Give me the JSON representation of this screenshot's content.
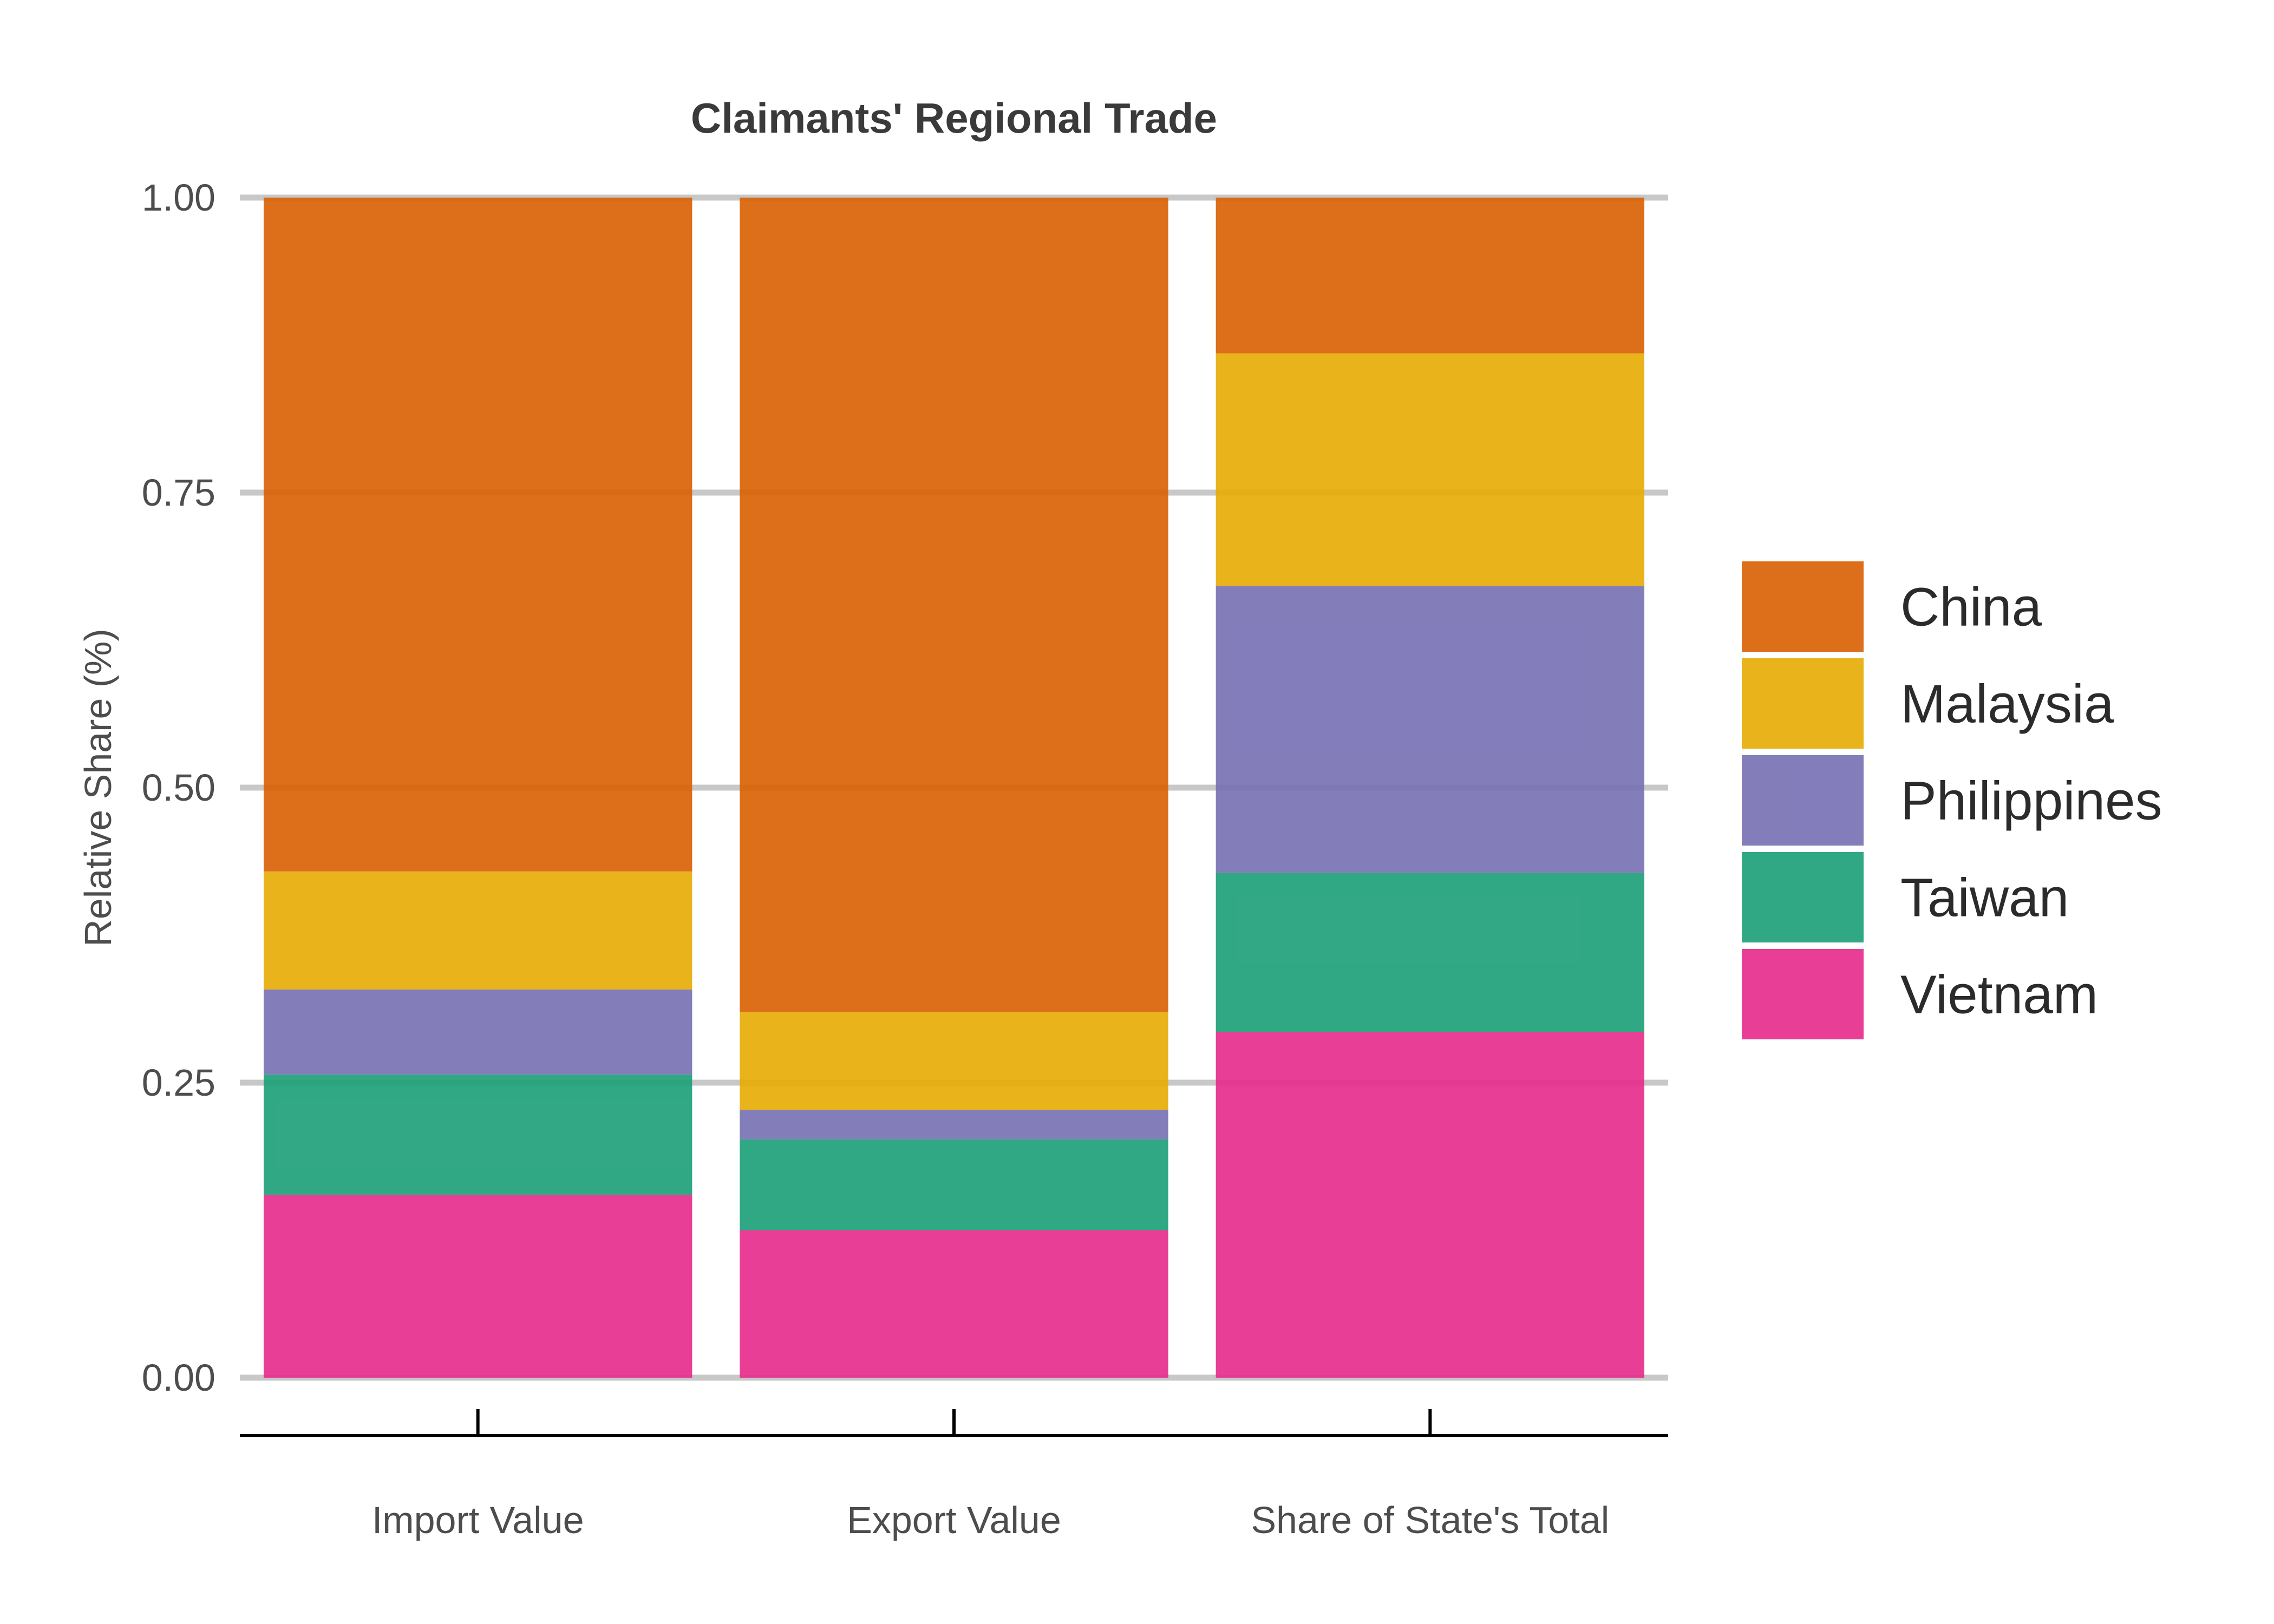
{
  "chart_data": {
    "type": "bar",
    "stacked": true,
    "title": "Claimants' Regional Trade",
    "xlabel": "",
    "ylabel": "Relative Share (%)",
    "ylim": [
      0,
      1
    ],
    "yticks": [
      "0.00",
      "0.25",
      "0.50",
      "0.75",
      "1.00"
    ],
    "grid": "horizontal",
    "legend_position": "right",
    "categories": [
      "Import Value",
      "Export Value",
      "Share of State's Total"
    ],
    "series": [
      {
        "name": "Vietnam",
        "color": "#e7298a",
        "values": [
          0.155,
          0.125,
          0.293
        ]
      },
      {
        "name": "Taiwan",
        "color": "#1b9e77",
        "values": [
          0.102,
          0.077,
          0.135
        ]
      },
      {
        "name": "Philippines",
        "color": "#7570b3",
        "values": [
          0.072,
          0.025,
          0.243
        ]
      },
      {
        "name": "Malaysia",
        "color": "#e6ab02",
        "values": [
          0.1,
          0.083,
          0.197
        ]
      },
      {
        "name": "China",
        "color": "#d95f02",
        "values": [
          0.571,
          0.69,
          0.132
        ]
      }
    ],
    "legend_order": [
      "China",
      "Malaysia",
      "Philippines",
      "Taiwan",
      "Vietnam"
    ]
  }
}
